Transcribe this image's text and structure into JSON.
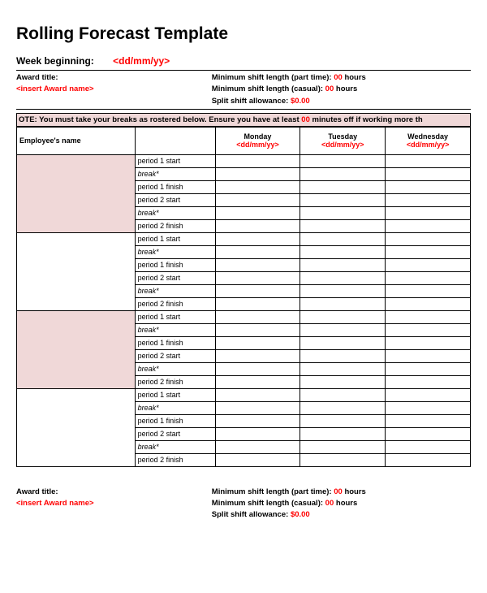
{
  "title": "Rolling Forecast Template",
  "week": {
    "label": "Week beginning:",
    "value": "<dd/mm/yy>"
  },
  "award_top": {
    "title_label": "Award title:",
    "title_value": "<insert Award name>",
    "min_pt_label": "Minimum shift length (part time):",
    "min_pt_value": "00",
    "min_pt_unit": "hours",
    "min_cas_label": "Minimum shift length (casual):",
    "min_cas_value": "00",
    "min_cas_unit": "hours",
    "split_label": "Split shift allowance:",
    "split_value": "$0.00"
  },
  "note": {
    "prefix": "OTE: You must take your breaks as rostered below. Ensure you have at least ",
    "minutes": "00",
    "suffix": " minutes off if working more th"
  },
  "headers": {
    "name": "Employee's name",
    "period": "",
    "days": [
      {
        "name": "Monday",
        "date": "<dd/mm/yy>"
      },
      {
        "name": "Tuesday",
        "date": "<dd/mm/yy>"
      },
      {
        "name": "Wednesday",
        "date": "<dd/mm/yy>"
      }
    ]
  },
  "period_labels": {
    "p1start": "period 1 start",
    "break1": "break*",
    "p1finish": "period 1 finish",
    "p2start": "period 2 start",
    "break2": "break*",
    "p2finish": "period 2 finish"
  },
  "employees": [
    {
      "shaded": true
    },
    {
      "shaded": false
    },
    {
      "shaded": true
    },
    {
      "shaded": false
    }
  ],
  "award_bottom": {
    "title_label": "Award title:",
    "title_value": "<insert Award name>",
    "min_pt_label": "Minimum shift length (part time):",
    "min_pt_value": "00",
    "min_pt_unit": "hours",
    "min_cas_label": "Minimum shift length (casual):",
    "min_cas_value": "00",
    "min_cas_unit": "hours",
    "split_label": "Split shift allowance:",
    "split_value": "$0.00"
  },
  "colors": {
    "shaded_bg": "#f0d8d8",
    "red": "#ff0000",
    "border": "#000000",
    "background": "#ffffff"
  }
}
